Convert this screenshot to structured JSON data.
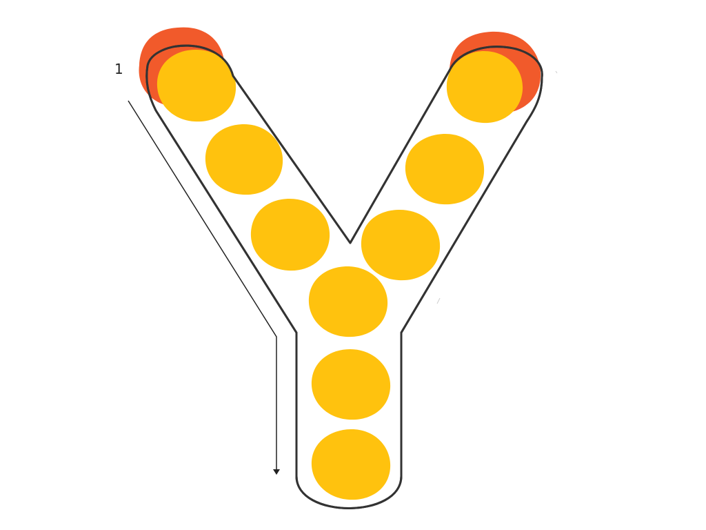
{
  "worksheet": {
    "letter": "Y",
    "stroke_number": "1",
    "dot_color": "#FFC20E",
    "start_dot_color": "#F15A2B",
    "outline_color": "#333333",
    "guide_color": "#222222"
  }
}
